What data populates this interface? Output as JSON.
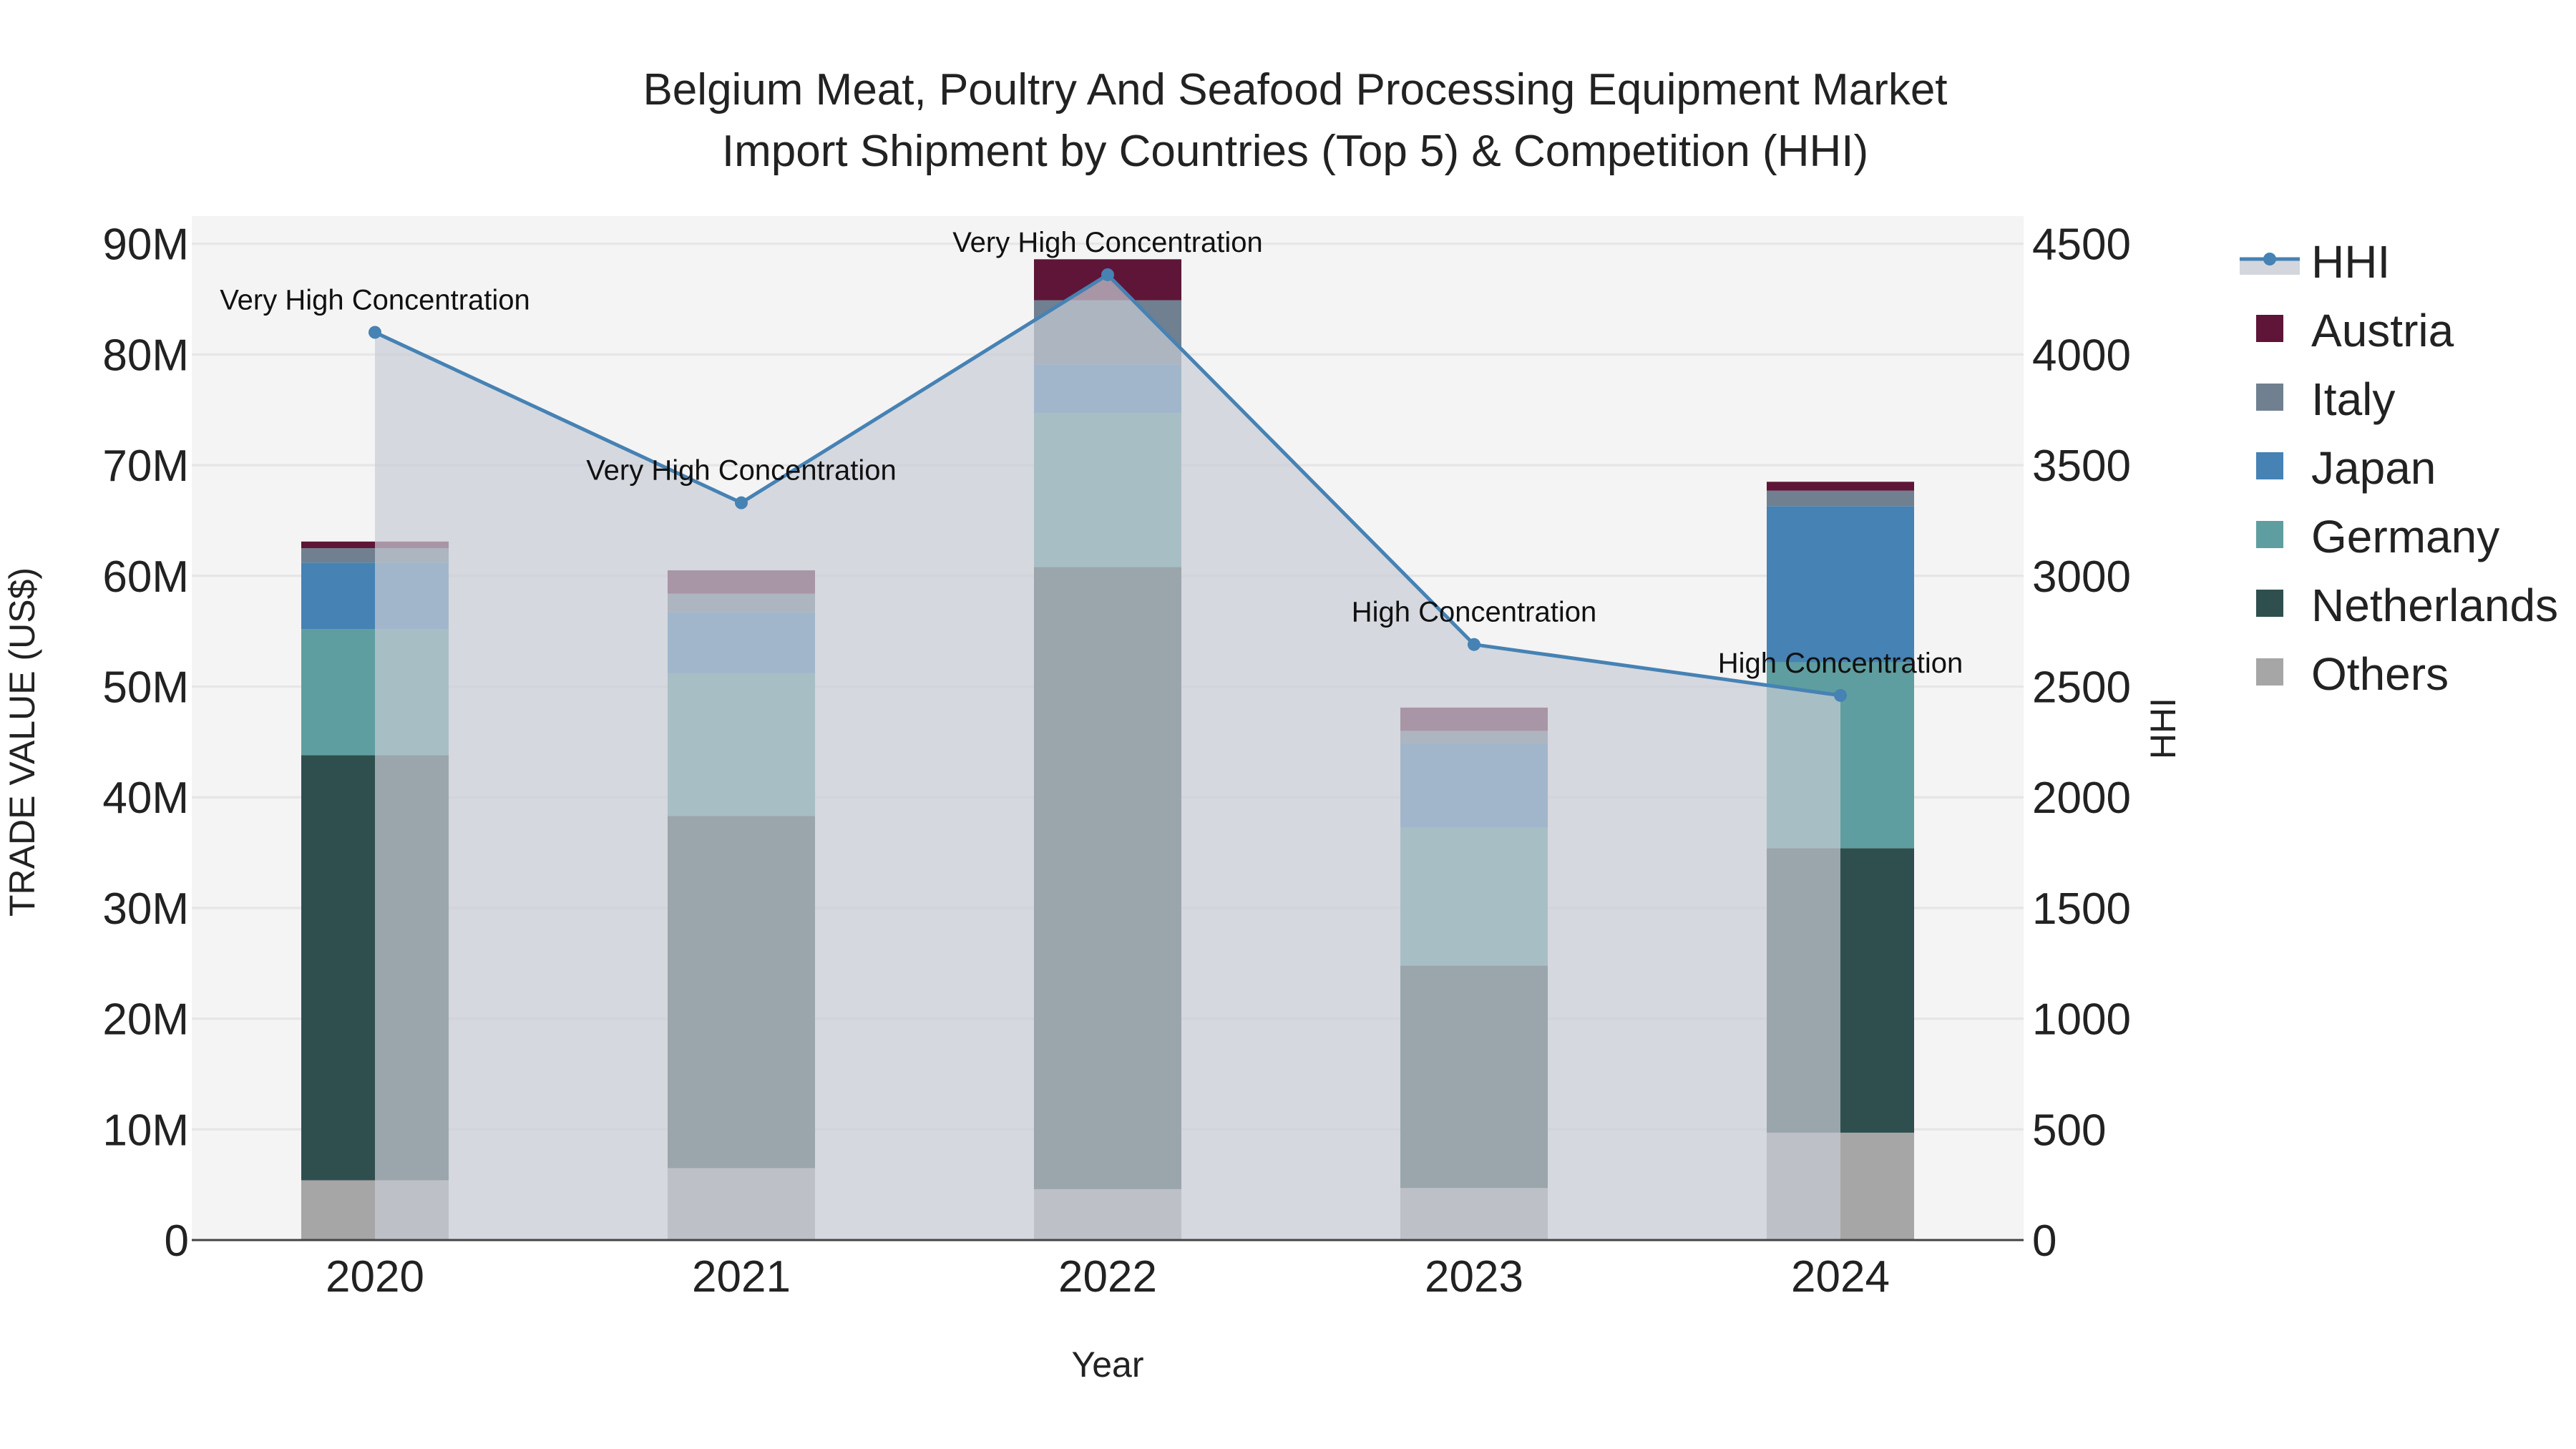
{
  "chart_data": {
    "type": "bar",
    "title_lines": [
      "Belgium Meat, Poultry And Seafood Processing Equipment Market",
      "Import Shipment by Countries (Top 5) & Competition (HHI)"
    ],
    "xlabel": "Year",
    "ylabel": "TRADE VALUE (US$)",
    "y2label": "HHI",
    "categories": [
      "2020",
      "2021",
      "2022",
      "2023",
      "2024"
    ],
    "ylim": [
      0,
      92500000
    ],
    "y2lim": [
      0,
      4625
    ],
    "yticks": [
      {
        "value": 0,
        "label": "0"
      },
      {
        "value": 10000000,
        "label": "10M"
      },
      {
        "value": 20000000,
        "label": "20M"
      },
      {
        "value": 30000000,
        "label": "30M"
      },
      {
        "value": 40000000,
        "label": "40M"
      },
      {
        "value": 50000000,
        "label": "50M"
      },
      {
        "value": 60000000,
        "label": "60M"
      },
      {
        "value": 70000000,
        "label": "70M"
      },
      {
        "value": 80000000,
        "label": "80M"
      },
      {
        "value": 90000000,
        "label": "90M"
      }
    ],
    "y2ticks": [
      {
        "value": 0,
        "label": "0"
      },
      {
        "value": 500,
        "label": "500"
      },
      {
        "value": 1000,
        "label": "1000"
      },
      {
        "value": 1500,
        "label": "1500"
      },
      {
        "value": 2000,
        "label": "2000"
      },
      {
        "value": 2500,
        "label": "2500"
      },
      {
        "value": 3000,
        "label": "3000"
      },
      {
        "value": 3500,
        "label": "3500"
      },
      {
        "value": 4000,
        "label": "4000"
      },
      {
        "value": 4500,
        "label": "4500"
      }
    ],
    "series": [
      {
        "name": "Others",
        "color": "#a6a6a6",
        "values": [
          5400000,
          6500000,
          4600000,
          4700000,
          9700000
        ]
      },
      {
        "name": "Netherlands",
        "color": "#2f4f4f",
        "values": [
          38400000,
          31800000,
          56200000,
          20100000,
          25700000
        ]
      },
      {
        "name": "Germany",
        "color": "#5f9ea0",
        "values": [
          11400000,
          12900000,
          13900000,
          12500000,
          16800000
        ]
      },
      {
        "name": "Japan",
        "color": "#4682b4",
        "values": [
          6000000,
          5500000,
          4400000,
          7500000,
          14100000
        ]
      },
      {
        "name": "Italy",
        "color": "#708090",
        "values": [
          1300000,
          1700000,
          5800000,
          1200000,
          1400000
        ]
      },
      {
        "name": "Austria",
        "color": "#5e1537",
        "values": [
          600000,
          2100000,
          3700000,
          2100000,
          800000
        ]
      }
    ],
    "hhi": {
      "name": "HHI",
      "color": "#4682b4",
      "fill_color": "#c8ccd4",
      "values": [
        4100,
        3330,
        4360,
        2690,
        2460
      ],
      "labels": [
        "Very High Concentration",
        "Very High Concentration",
        "Very High Concentration",
        "High Concentration",
        "High Concentration"
      ]
    },
    "legend_order": [
      "HHI",
      "Austria",
      "Italy",
      "Japan",
      "Germany",
      "Netherlands",
      "Others"
    ],
    "legend_position": "top-right outside"
  }
}
